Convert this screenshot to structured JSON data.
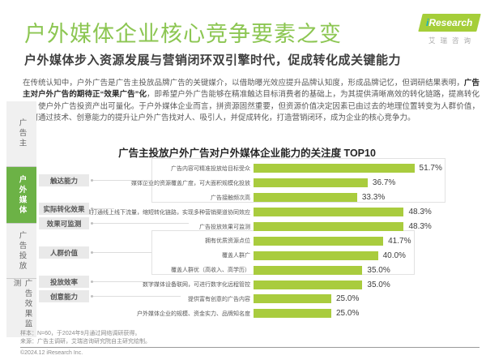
{
  "header": {
    "title": "户外媒体企业核心竞争要素之变",
    "subtitle": "户外媒体步入资源发展与营销闭环双引擎时代，促成转化成关键能力"
  },
  "logo": {
    "brand_i": "i",
    "brand_name": "Research",
    "brand_cn": "艾瑞咨询"
  },
  "sidebar": {
    "items": [
      {
        "label": "广告主",
        "active": false
      },
      {
        "label": "户外媒体",
        "active": true
      },
      {
        "label": "广告投放",
        "active": false
      },
      {
        "label": "广告效果监测",
        "active": false
      }
    ]
  },
  "intro": {
    "pre": "在传统认知中，户外广告是广告主投放品牌广告的关键媒介，以借助曝光效应提升品牌认知度，形成品牌记忆，但调研结果表明，",
    "bold": "广告主对户外广告的期待正“效果广告”化",
    "post": "，即希望户外广告能够在精准触达目标消费者的基础上，为其提供清晰高效的转化链路，提高转化率，使户外广告投资产出可量化。于户外媒体企业而言，拼资源固然重要，但资源价值决定因素已由过去的地理位置转变为人群价值，如何通过技术、创意能力的提升让户外广告找对人、吸引人，并促成转化，打造营销闭环，成为企业的核心竞争力。"
  },
  "chart_data": {
    "type": "bar",
    "orientation": "horizontal",
    "title": "广告主投放户外广告对户外媒体企业能力的关注度 TOP10",
    "unit": "%",
    "xlim": [
      0,
      55
    ],
    "bar_color": "#A9CC3E",
    "grid": false,
    "legend": "none",
    "categories_groups": [
      {
        "label": "触达能力",
        "row_indexes": [
          0,
          1,
          2
        ],
        "boxed": true
      },
      {
        "label": "实际转化效果",
        "row_indexes": [
          3
        ],
        "boxed": false
      },
      {
        "label": "效果可监测",
        "row_indexes": [
          4
        ],
        "boxed": false
      },
      {
        "label": "人群价值",
        "row_indexes": [
          5,
          6,
          7
        ],
        "boxed": true
      },
      {
        "label": "投放效率",
        "row_indexes": [
          8
        ],
        "boxed": false
      },
      {
        "label": "创意能力",
        "row_indexes": [
          9
        ],
        "boxed": false
      }
    ],
    "rows": [
      {
        "label": "广告内容可精准投放给目标受众",
        "value": 51.7,
        "display": "51.7%"
      },
      {
        "label": "媒体企业的资源覆盖广度，可大面积规模化投放",
        "value": 36.7,
        "display": "36.7%"
      },
      {
        "label": "广告接触频次高",
        "value": 33.3,
        "display": "33.3%"
      },
      {
        "label": "高效打通线上线下流量，缩短转化链路，实现多种营销渠道协同效应",
        "value": 48.3,
        "display": "48.3%"
      },
      {
        "label": "广告投放效果可监测",
        "value": 48.3,
        "display": "48.3%"
      },
      {
        "label": "拥有优质资源点位",
        "value": 41.7,
        "display": "41.7%"
      },
      {
        "label": "覆盖人群广",
        "value": 40.0,
        "display": "40.0%"
      },
      {
        "label": "覆盖人群优（高收入、高学历）",
        "value": 35.0,
        "display": "35.0%"
      },
      {
        "label": "数字媒体设备联网，可进行数字化远程管控",
        "value": 35.0,
        "display": "35.0%"
      },
      {
        "label": "提供富有创意的广告内容",
        "value": 25.0,
        "display": "25.0%"
      },
      {
        "label": "户外媒体企业的规模、资金实力、品牌知名度",
        "value": 25.0,
        "display": "25.0%"
      }
    ]
  },
  "footer": {
    "sample": "样本：N=60，于2024年9月通过网络调研获得。",
    "source": "来源：广告主调研，艾瑞咨询研究院自主研究绘制。",
    "copyright": "©2024.12 iResearch Inc."
  }
}
